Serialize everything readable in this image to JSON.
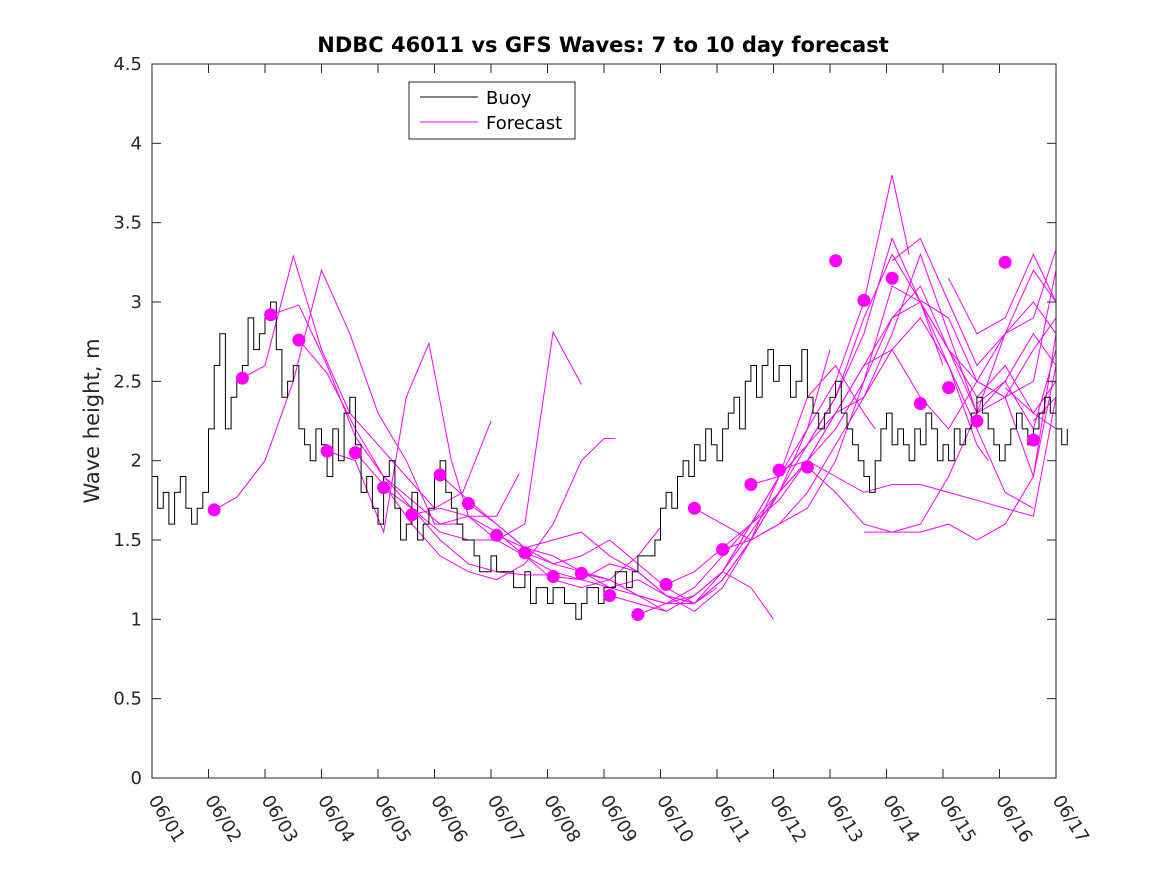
{
  "chart_data": {
    "type": "line",
    "title": "NDBC 46011 vs GFS Waves: 7 to 10 day forecast",
    "xlabel": "",
    "ylabel": "Wave height, m",
    "xlim": [
      0,
      16
    ],
    "ylim": [
      0,
      4.5
    ],
    "x_unit": "days since 06/01",
    "xticks": [
      0,
      1,
      2,
      3,
      4,
      5,
      6,
      7,
      8,
      9,
      10,
      11,
      12,
      13,
      14,
      15,
      16
    ],
    "xtick_labels": [
      "06/01",
      "06/02",
      "06/03",
      "06/04",
      "06/05",
      "06/06",
      "06/07",
      "06/08",
      "06/09",
      "06/10",
      "06/11",
      "06/12",
      "06/13",
      "06/14",
      "06/15",
      "06/16",
      "06/17"
    ],
    "yticks": [
      0,
      0.5,
      1,
      1.5,
      2,
      2.5,
      3,
      3.5,
      4,
      4.5
    ],
    "ytick_labels": [
      "0",
      "0.5",
      "1",
      "1.5",
      "2",
      "2.5",
      "3",
      "3.5",
      "4",
      "4.5"
    ],
    "grid": false,
    "legend_position": "top-left",
    "colors": {
      "buoy": "#000000",
      "forecast": "#ff00ff"
    },
    "series": [
      {
        "name": "Buoy",
        "style": "line",
        "x": [
          0,
          0.1,
          0.2,
          0.3,
          0.4,
          0.5,
          0.6,
          0.7,
          0.8,
          0.9,
          1.0,
          1.1,
          1.2,
          1.3,
          1.4,
          1.5,
          1.6,
          1.7,
          1.8,
          1.9,
          2.0,
          2.1,
          2.2,
          2.3,
          2.4,
          2.5,
          2.6,
          2.7,
          2.8,
          2.9,
          3.0,
          3.1,
          3.2,
          3.3,
          3.4,
          3.5,
          3.6,
          3.7,
          3.8,
          3.9,
          4.0,
          4.1,
          4.2,
          4.3,
          4.4,
          4.5,
          4.6,
          4.7,
          4.8,
          4.9,
          5.0,
          5.1,
          5.2,
          5.3,
          5.4,
          5.5,
          5.6,
          5.7,
          5.8,
          5.9,
          6.0,
          6.1,
          6.2,
          6.3,
          6.4,
          6.5,
          6.6,
          6.7,
          6.8,
          6.9,
          7.0,
          7.1,
          7.2,
          7.3,
          7.4,
          7.5,
          7.6,
          7.7,
          7.8,
          7.9,
          8.0,
          8.1,
          8.2,
          8.3,
          8.4,
          8.5,
          8.6,
          8.7,
          8.8,
          8.9,
          9.0,
          9.1,
          9.2,
          9.3,
          9.4,
          9.5,
          9.6,
          9.7,
          9.8,
          9.9,
          10.0,
          10.1,
          10.2,
          10.3,
          10.4,
          10.5,
          10.6,
          10.7,
          10.8,
          10.9,
          11.0,
          11.1,
          11.2,
          11.3,
          11.4,
          11.5,
          11.6,
          11.7,
          11.8,
          11.9,
          12.0,
          12.1,
          12.2,
          12.3,
          12.4,
          12.5,
          12.6,
          12.7,
          12.8,
          12.9,
          13.0,
          13.1,
          13.2,
          13.3,
          13.4,
          13.5,
          13.6,
          13.7,
          13.8,
          13.9,
          14.0,
          14.1,
          14.2,
          14.3,
          14.4,
          14.5,
          14.6,
          14.7,
          14.8,
          14.9,
          15.0,
          15.1,
          15.2,
          15.3,
          15.4,
          15.5,
          15.6,
          15.7,
          15.8,
          15.9,
          16.0,
          16.1,
          16.2
        ],
        "y": [
          1.9,
          1.7,
          1.8,
          1.6,
          1.8,
          1.9,
          1.7,
          1.6,
          1.7,
          1.8,
          2.2,
          2.6,
          2.8,
          2.2,
          2.4,
          2.5,
          2.6,
          2.9,
          2.7,
          2.8,
          2.9,
          3.0,
          2.7,
          2.4,
          2.5,
          2.6,
          2.2,
          2.1,
          2.0,
          2.2,
          2.1,
          1.9,
          2.2,
          2.0,
          2.3,
          2.4,
          2.1,
          1.8,
          1.9,
          1.7,
          1.6,
          1.9,
          2.0,
          1.7,
          1.5,
          1.6,
          1.8,
          1.5,
          1.6,
          1.7,
          1.9,
          2.0,
          1.8,
          1.7,
          1.6,
          1.5,
          1.5,
          1.4,
          1.3,
          1.3,
          1.4,
          1.3,
          1.3,
          1.3,
          1.2,
          1.2,
          1.3,
          1.1,
          1.2,
          1.2,
          1.1,
          1.2,
          1.2,
          1.1,
          1.1,
          1.0,
          1.1,
          1.2,
          1.2,
          1.1,
          1.2,
          1.2,
          1.3,
          1.3,
          1.2,
          1.3,
          1.4,
          1.4,
          1.4,
          1.5,
          1.7,
          1.8,
          1.7,
          1.9,
          2.0,
          1.9,
          2.1,
          2.0,
          2.2,
          2.1,
          2.0,
          2.2,
          2.3,
          2.4,
          2.2,
          2.5,
          2.6,
          2.4,
          2.6,
          2.7,
          2.5,
          2.6,
          2.6,
          2.4,
          2.5,
          2.7,
          2.4,
          2.3,
          2.2,
          2.3,
          2.4,
          2.5,
          2.3,
          2.2,
          2.1,
          2.0,
          1.9,
          1.8,
          2.0,
          2.2,
          2.3,
          2.1,
          2.2,
          2.1,
          2.0,
          2.2,
          2.1,
          2.3,
          2.2,
          2.0,
          2.1,
          2.0,
          2.2,
          2.1,
          2.2,
          2.3,
          2.4,
          2.3,
          2.2,
          2.1,
          2.0,
          2.1,
          2.2,
          2.3,
          2.2,
          2.1,
          2.2,
          2.3,
          2.4,
          2.3,
          2.2,
          2.1,
          2.2
        ]
      },
      {
        "name": "Forecast",
        "style": "line",
        "x": [
          1.1,
          1.5,
          2.0,
          2.5,
          3.0,
          3.5,
          4.0,
          4.5,
          5.0,
          5.5
        ],
        "y": [
          1.69,
          1.77,
          2.0,
          2.5,
          3.2,
          2.8,
          2.3,
          2.0,
          1.6,
          1.6
        ]
      },
      {
        "x": [
          1.6,
          2.0,
          2.5,
          3.0,
          3.5,
          4.0,
          4.5,
          5.0,
          5.5,
          6.0
        ],
        "y": [
          2.52,
          2.6,
          3.29,
          2.7,
          2.3,
          2.1,
          1.9,
          1.7,
          1.8,
          2.25
        ]
      },
      {
        "x": [
          2.1,
          2.6,
          3.1,
          3.6,
          4.1,
          4.6,
          5.1,
          5.6,
          6.1,
          6.5
        ],
        "y": [
          2.92,
          2.98,
          2.6,
          2.15,
          1.9,
          1.75,
          1.6,
          1.65,
          1.65,
          1.92
        ]
      },
      {
        "x": [
          2.6,
          3.1,
          3.6,
          4.1,
          4.6,
          5.1,
          5.6,
          6.1,
          6.6,
          7.0
        ],
        "y": [
          2.76,
          2.55,
          2.2,
          1.9,
          1.7,
          1.5,
          1.35,
          1.3,
          1.28,
          1.28
        ]
      },
      {
        "x": [
          3.1,
          3.6,
          4.1,
          4.5,
          4.9,
          5.3,
          5.6,
          6.1,
          6.6,
          7.1,
          7.6
        ],
        "y": [
          2.06,
          2.0,
          1.55,
          2.4,
          2.74,
          2.0,
          1.65,
          1.5,
          1.6,
          2.81,
          2.48
        ]
      },
      {
        "x": [
          3.6,
          4.1,
          4.6,
          5.1,
          5.6,
          6.1,
          6.6,
          7.1,
          7.6,
          8.0,
          8.2
        ],
        "y": [
          2.05,
          1.85,
          1.6,
          1.4,
          1.3,
          1.25,
          1.35,
          1.6,
          2.0,
          2.14,
          2.14
        ]
      },
      {
        "x": [
          4.1,
          4.6,
          5.1,
          5.6,
          6.1,
          6.6,
          7.1,
          7.6,
          8.1,
          8.6,
          9.0
        ],
        "y": [
          1.83,
          1.7,
          1.55,
          1.5,
          1.5,
          1.4,
          1.25,
          1.2,
          1.25,
          1.4,
          1.58
        ]
      },
      {
        "x": [
          4.6,
          5.1,
          5.6,
          6.1,
          6.6,
          7.1,
          7.6,
          8.1,
          8.6,
          9.1,
          9.6,
          10.0
        ],
        "y": [
          1.66,
          1.7,
          1.65,
          1.55,
          1.4,
          1.3,
          1.25,
          1.35,
          1.3,
          1.15,
          1.1,
          1.2
        ]
      },
      {
        "x": [
          5.1,
          5.6,
          6.1,
          6.6,
          7.1,
          7.6,
          8.1,
          8.6,
          9.1,
          9.6,
          10.1,
          10.6,
          11.0
        ],
        "y": [
          1.91,
          1.75,
          1.6,
          1.45,
          1.35,
          1.4,
          1.5,
          1.35,
          1.2,
          1.1,
          1.3,
          1.2,
          1.0
        ]
      },
      {
        "x": [
          5.6,
          6.1,
          6.6,
          7.1,
          7.6,
          8.1,
          8.6,
          9.1,
          9.6,
          10.1,
          10.6,
          11.1,
          11.6,
          12.0
        ],
        "y": [
          1.73,
          1.6,
          1.45,
          1.5,
          1.55,
          1.4,
          1.3,
          1.15,
          1.05,
          1.2,
          1.5,
          1.8,
          2.2,
          2.7
        ]
      },
      {
        "x": [
          6.1,
          6.6,
          7.1,
          7.6,
          8.1,
          8.6,
          9.1,
          9.6,
          10.1,
          10.6,
          11.1,
          11.6,
          12.1,
          12.6,
          12.8
        ],
        "y": [
          1.53,
          1.45,
          1.4,
          1.3,
          1.2,
          1.25,
          1.15,
          1.1,
          1.25,
          1.5,
          1.9,
          2.4,
          2.6,
          2.3,
          2.2
        ]
      },
      {
        "x": [
          6.6,
          7.1,
          7.6,
          8.1,
          8.6,
          9.1,
          9.6,
          10.1,
          10.6,
          11.1,
          11.6,
          12.1,
          12.6,
          13.1,
          13.4
        ],
        "y": [
          1.42,
          1.35,
          1.3,
          1.25,
          1.15,
          1.1,
          1.15,
          1.3,
          1.6,
          1.9,
          2.2,
          2.5,
          3.0,
          3.8,
          3.3
        ]
      },
      {
        "x": [
          7.1,
          7.6,
          8.1,
          8.6,
          9.1,
          9.6,
          10.1,
          10.6,
          11.1,
          11.6,
          12.1,
          12.6,
          13.1,
          13.6,
          14.0
        ],
        "y": [
          1.27,
          1.25,
          1.2,
          1.15,
          1.1,
          1.1,
          1.25,
          1.5,
          1.8,
          2.1,
          2.4,
          2.8,
          3.4,
          3.0,
          2.6
        ]
      },
      {
        "x": [
          7.6,
          8.1,
          8.6,
          9.1,
          9.6,
          10.1,
          10.6,
          11.1,
          11.6,
          12.1,
          12.6,
          13.1,
          13.6,
          14.1,
          14.6,
          14.8
        ],
        "y": [
          1.29,
          1.25,
          1.15,
          1.05,
          1.15,
          1.3,
          1.6,
          1.9,
          2.1,
          2.4,
          2.9,
          3.3,
          3.0,
          2.6,
          2.1,
          2.0
        ]
      },
      {
        "x": [
          8.1,
          8.6,
          9.1,
          9.6,
          10.1,
          10.6,
          11.1,
          11.6,
          12.1,
          12.6,
          13.1,
          13.6,
          14.1,
          14.6,
          15.1,
          15.6
        ],
        "y": [
          1.15,
          1.1,
          1.05,
          1.15,
          1.3,
          1.55,
          1.8,
          2.0,
          2.3,
          2.6,
          2.7,
          2.9,
          2.6,
          2.2,
          1.8,
          1.7
        ]
      },
      {
        "x": [
          8.6,
          9.1,
          9.6,
          10.1,
          10.6,
          11.1,
          11.6,
          12.1,
          12.6,
          13.1,
          13.6,
          14.1,
          14.6,
          15.1,
          15.6,
          16.0
        ],
        "y": [
          1.03,
          1.1,
          1.2,
          1.4,
          1.6,
          1.8,
          2.0,
          2.2,
          2.5,
          3.1,
          3.0,
          2.7,
          2.4,
          2.6,
          2.3,
          2.5
        ]
      },
      {
        "x": [
          9.1,
          9.6,
          10.1,
          10.6,
          11.1,
          11.6,
          12.1,
          12.6,
          13.1,
          13.6,
          14.1,
          14.6,
          15.1,
          15.6,
          16.0
        ],
        "y": [
          1.22,
          1.3,
          1.45,
          1.6,
          1.75,
          2.0,
          2.3,
          2.6,
          2.9,
          3.1,
          2.7,
          2.3,
          2.5,
          2.2,
          2.7
        ]
      },
      {
        "x": [
          9.6,
          10.1,
          10.6,
          11.1,
          11.6,
          12.1,
          12.6,
          13.1,
          13.6,
          14.1,
          14.6,
          15.1,
          15.6,
          16.0
        ],
        "y": [
          1.7,
          1.6,
          1.5,
          1.6,
          1.8,
          2.1,
          2.4,
          2.8,
          3.3,
          2.8,
          2.3,
          2.8,
          3.0,
          2.8
        ]
      },
      {
        "x": [
          10.1,
          10.6,
          11.1,
          11.6,
          12.1,
          12.6,
          13.1,
          13.6,
          14.1,
          14.6,
          15.1,
          15.6,
          16.0
        ],
        "y": [
          1.44,
          1.5,
          1.6,
          1.7,
          2.0,
          2.5,
          2.9,
          3.0,
          2.7,
          2.5,
          2.8,
          2.9,
          3.33
        ]
      },
      {
        "x": [
          10.6,
          11.1,
          11.6,
          12.1,
          12.6,
          13.1,
          13.6,
          14.1,
          14.6,
          15.1,
          15.6,
          16.0
        ],
        "y": [
          1.85,
          1.9,
          2.1,
          2.3,
          2.4,
          2.7,
          2.4,
          2.2,
          2.5,
          2.4,
          1.9,
          2.6
        ]
      },
      {
        "x": [
          11.1,
          11.6,
          12.1,
          12.6,
          13.1,
          13.6,
          14.1,
          14.6,
          15.1,
          15.6,
          16.0
        ],
        "y": [
          1.94,
          2.0,
          1.9,
          1.8,
          1.85,
          1.85,
          1.8,
          1.75,
          1.7,
          1.65,
          2.4
        ]
      },
      {
        "x": [
          11.6,
          12.1,
          12.6,
          13.1,
          13.6,
          14.1,
          14.6,
          15.1,
          15.6,
          16.0
        ],
        "y": [
          1.96,
          1.8,
          1.6,
          1.55,
          1.55,
          1.6,
          1.5,
          1.6,
          1.9,
          2.8
        ]
      },
      {
        "x": [
          12.6,
          13.1,
          13.6,
          14.1,
          14.6,
          15.1,
          15.6,
          16.0
        ],
        "y": [
          1.55,
          1.55,
          1.6,
          1.9,
          2.3,
          2.4,
          2.5,
          3.2
        ]
      },
      {
        "x": [
          13.1,
          13.6,
          14.1,
          14.6,
          15.1,
          15.6,
          16.0
        ],
        "y": [
          3.26,
          3.4,
          3.0,
          2.6,
          2.8,
          3.2,
          3.0
        ]
      },
      {
        "x": [
          13.6,
          14.1,
          14.6,
          15.1,
          15.6,
          16.0
        ],
        "y": [
          3.01,
          2.9,
          2.5,
          2.4,
          2.7,
          2.9
        ]
      },
      {
        "x": [
          14.1,
          14.6,
          15.1,
          15.6,
          16.0
        ],
        "y": [
          3.15,
          2.8,
          2.9,
          3.3,
          3.0
        ]
      },
      {
        "x": [
          14.6,
          15.1,
          15.6,
          16.0
        ],
        "y": [
          2.36,
          2.5,
          2.8,
          2.6
        ]
      },
      {
        "x": [
          15.1,
          15.6,
          16.0
        ],
        "y": [
          2.46,
          2.3,
          2.2
        ]
      },
      {
        "x": [
          15.6,
          16.0
        ],
        "y": [
          2.25,
          2.4
        ]
      },
      {
        "style": "markers",
        "x": [
          1.1,
          1.6,
          2.1,
          2.6,
          3.1,
          3.6,
          4.1,
          4.6,
          5.1,
          5.6,
          6.1,
          6.6,
          7.1,
          7.6,
          8.1,
          8.6,
          9.1,
          9.6,
          10.1,
          10.6,
          11.1,
          11.6,
          12.1,
          12.6,
          13.1,
          13.6,
          14.1,
          14.6,
          15.1,
          15.6
        ],
        "y": [
          1.69,
          2.52,
          2.92,
          2.76,
          2.06,
          2.05,
          1.83,
          1.66,
          1.91,
          1.73,
          1.53,
          1.42,
          1.27,
          1.29,
          1.15,
          1.03,
          1.22,
          1.7,
          1.44,
          1.85,
          1.94,
          1.96,
          3.26,
          3.01,
          3.15,
          2.36,
          2.46,
          2.25,
          3.25,
          2.13
        ]
      }
    ]
  }
}
